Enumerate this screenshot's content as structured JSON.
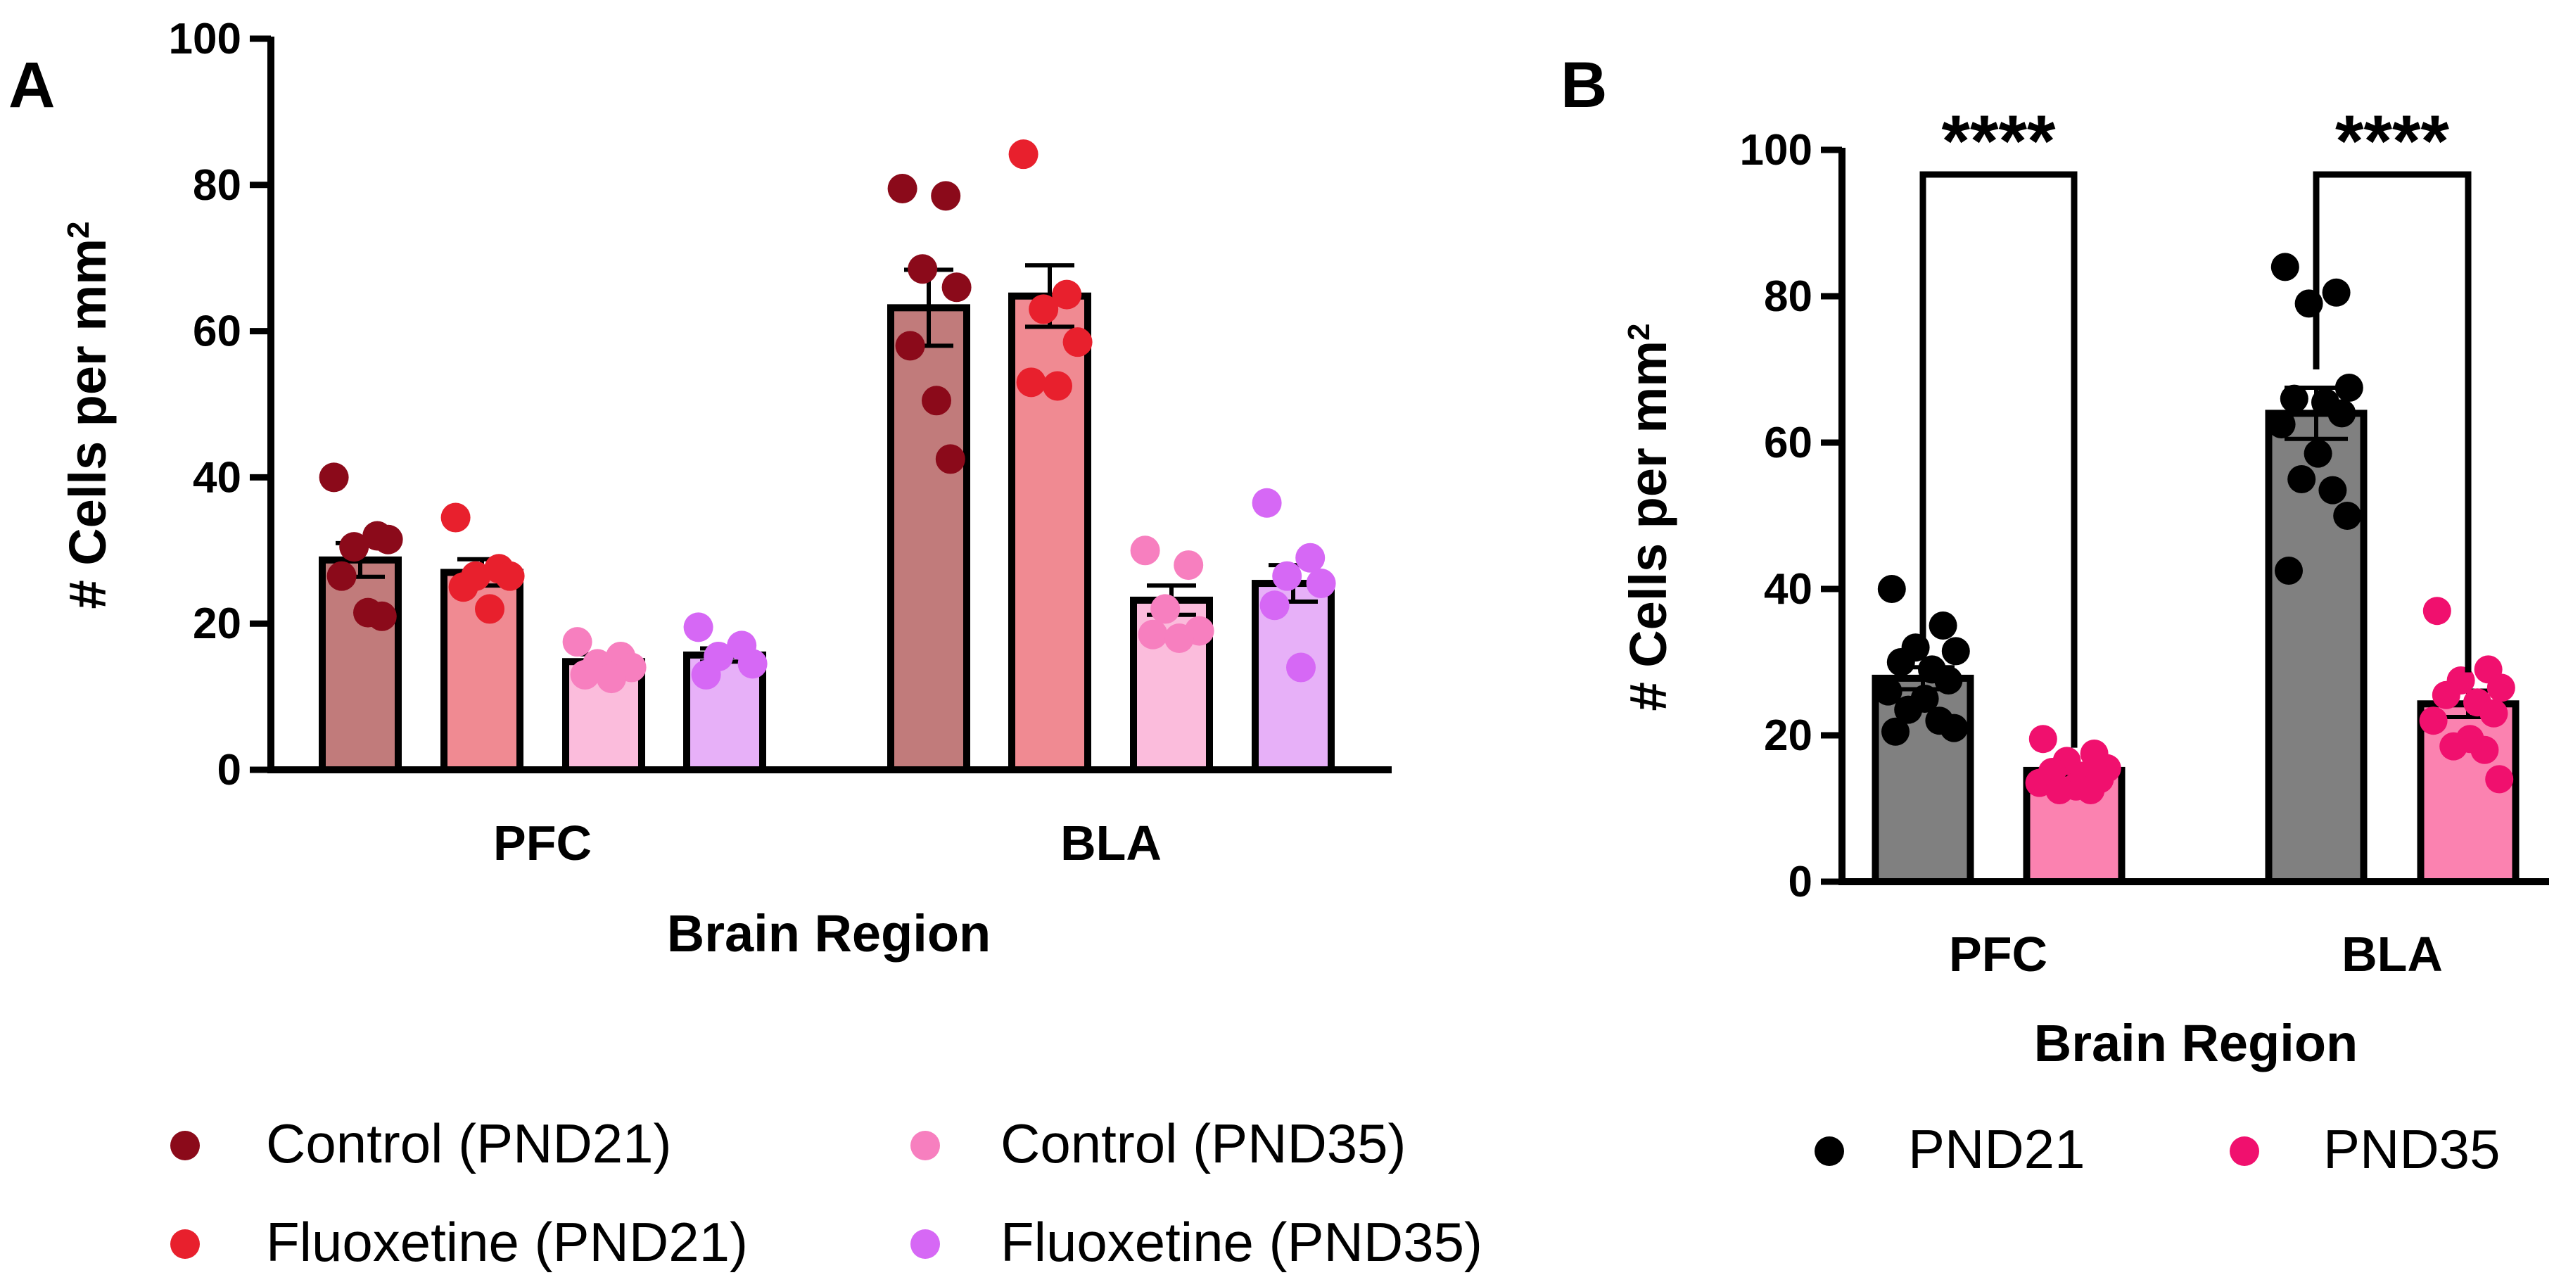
{
  "chart_data": [
    {
      "type": "bar",
      "panel_label": "A",
      "xlabel": "Brain Region",
      "ylabel": "# Cells per mm²",
      "ylim": [
        0,
        100
      ],
      "yticks": [
        0,
        20,
        40,
        60,
        80,
        100
      ],
      "categories": [
        "PFC",
        "BLA"
      ],
      "error_bars": "SEM",
      "individual_points": true,
      "legend_position": "bottom",
      "series": [
        {
          "name": "Control (PND21)",
          "color": "#8b0a1a",
          "bar_fill": "#c17b7b",
          "values": [
            28.7,
            63.2
          ],
          "errors": [
            2.3,
            5.2
          ],
          "points": [
            [
              40.0,
              32.0,
              30.5,
              31.5,
              26.5,
              21.5,
              21.0
            ],
            [
              79.5,
              78.5,
              68.5,
              66.0,
              58.0,
              50.5,
              42.5
            ]
          ]
        },
        {
          "name": "Fluoxetine (PND21)",
          "color": "#e8202d",
          "bar_fill": "#f08a92",
          "values": [
            27.0,
            64.8
          ],
          "errors": [
            1.8,
            4.2
          ],
          "points": [
            [
              34.5,
              27.5,
              26.5,
              26.5,
              25.0,
              22.0
            ],
            [
              84.2,
              65.0,
              63.0,
              58.5,
              53.0,
              52.5
            ]
          ]
        },
        {
          "name": "Control (PND35)",
          "color": "#f77fbf",
          "bar_fill": "#fbbcdc",
          "values": [
            14.8,
            23.2
          ],
          "errors": [
            1.0,
            2.0
          ],
          "points": [
            [
              17.5,
              15.5,
              14.5,
              14.0,
              13.0,
              12.5
            ],
            [
              30.0,
              28.0,
              22.0,
              19.0,
              18.5,
              18.0
            ]
          ]
        },
        {
          "name": "Fluoxetine (PND35)",
          "color": "#d668f5",
          "bar_fill": "#e7b0f8",
          "values": [
            15.7,
            25.5
          ],
          "errors": [
            0.9,
            2.5
          ],
          "points": [
            [
              19.5,
              17.0,
              15.5,
              14.5,
              13.0
            ],
            [
              36.5,
              29.0,
              26.5,
              25.5,
              22.5,
              14.0
            ]
          ]
        }
      ]
    },
    {
      "type": "bar",
      "panel_label": "B",
      "xlabel": "Brain Region",
      "ylabel": "# Cells per mm²",
      "ylim": [
        0,
        100
      ],
      "yticks": [
        0,
        20,
        40,
        60,
        80,
        100
      ],
      "categories": [
        "PFC",
        "BLA"
      ],
      "error_bars": "SEM",
      "individual_points": true,
      "legend_position": "bottom",
      "series": [
        {
          "name": "PND21",
          "color": "#000000",
          "bar_fill": "#808080",
          "values": [
            27.8,
            64.0
          ],
          "errors": [
            1.5,
            3.5
          ],
          "points": [
            [
              40.0,
              35.0,
              32.0,
              31.5,
              30.0,
              29.0,
              27.5,
              26.0,
              25.0,
              23.5,
              22.0,
              21.0,
              20.5
            ],
            [
              84.0,
              80.5,
              79.0,
              67.5,
              66.0,
              65.5,
              64.0,
              62.5,
              58.5,
              55.0,
              53.5,
              50.0,
              42.5
            ]
          ]
        },
        {
          "name": "PND35",
          "color": "#f0106e",
          "bar_fill": "#fb82b0",
          "values": [
            15.2,
            24.3
          ],
          "errors": [
            0.6,
            1.8
          ],
          "points": [
            [
              19.5,
              17.5,
              16.5,
              15.5,
              15.0,
              14.5,
              14.0,
              13.5,
              13.0,
              12.5,
              12.5
            ],
            [
              37.0,
              29.0,
              27.5,
              26.5,
              25.5,
              24.5,
              23.0,
              22.0,
              19.5,
              18.5,
              18.0,
              14.0
            ]
          ]
        }
      ],
      "comparisons": [
        {
          "category": "PFC",
          "label": "****"
        },
        {
          "category": "BLA",
          "label": "****"
        }
      ]
    }
  ]
}
